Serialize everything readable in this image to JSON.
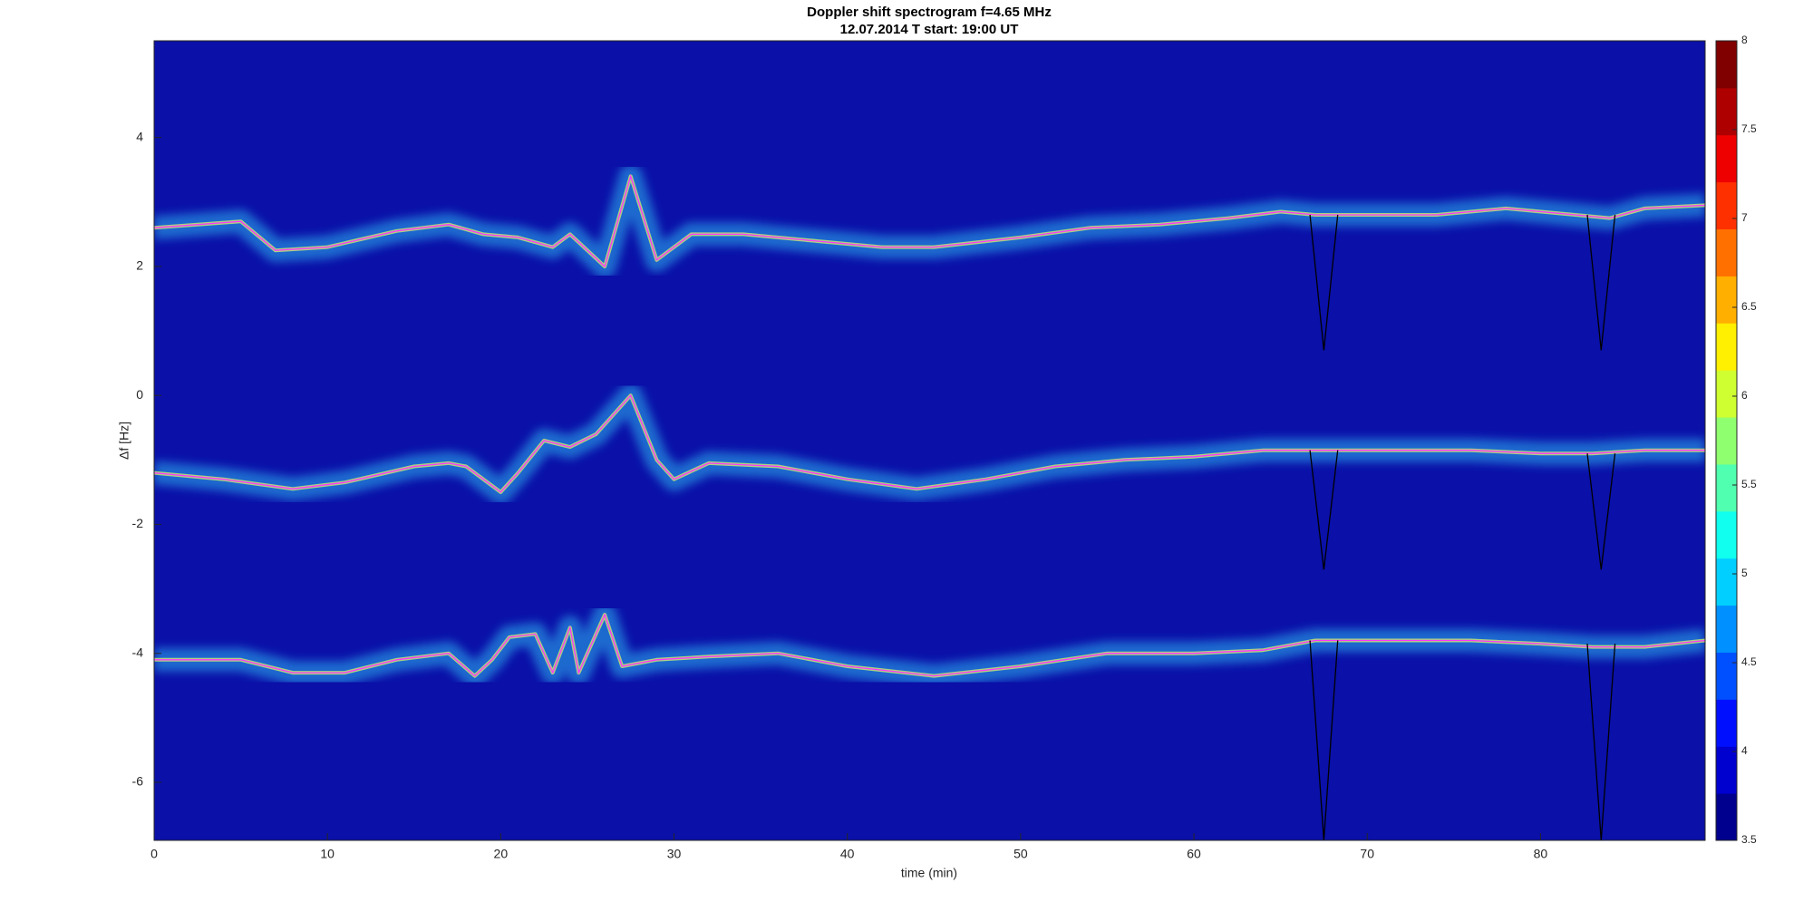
{
  "chart_data": {
    "type": "spectrogram",
    "title": "Doppler shift spectrogram f=4.65 MHz",
    "subtitle": "12.07.2014   T start: 19:00 UT",
    "x_label": "time (min)",
    "y_label": "Δf [Hz]",
    "xlim": [
      0,
      89.5
    ],
    "xticks": [
      0,
      10,
      20,
      30,
      40,
      50,
      60,
      70,
      80
    ],
    "ylim": [
      -6.9,
      5.5
    ],
    "yticks": [
      -6,
      -4,
      -2,
      0,
      2,
      4
    ],
    "background": "#0a10a8",
    "band_color": "#33d6ff",
    "series": [
      {
        "color": "#ff33ff",
        "band": true,
        "x": [
          0,
          5,
          7,
          10,
          14,
          17,
          19,
          21,
          23,
          24,
          26,
          27.5,
          29,
          31,
          34,
          38,
          42,
          45,
          50,
          54,
          58,
          62,
          65,
          67,
          70,
          74,
          78,
          82,
          84,
          86,
          89.5
        ],
        "values": [
          2.6,
          2.7,
          2.25,
          2.3,
          2.55,
          2.65,
          2.5,
          2.45,
          2.3,
          2.5,
          2.0,
          3.4,
          2.1,
          2.5,
          2.5,
          2.4,
          2.3,
          2.3,
          2.45,
          2.6,
          2.65,
          2.75,
          2.85,
          2.8,
          2.8,
          2.8,
          2.9,
          2.8,
          2.75,
          2.9,
          2.95
        ]
      },
      {
        "color": "#ff33ff",
        "band": true,
        "x": [
          0,
          4,
          8,
          11,
          15,
          17,
          18,
          20,
          21,
          22.5,
          24,
          25.5,
          27.5,
          29,
          30,
          32,
          36,
          40,
          44,
          48,
          52,
          56,
          60,
          64,
          67,
          70,
          76,
          80,
          83,
          86,
          89.5
        ],
        "values": [
          -1.2,
          -1.3,
          -1.45,
          -1.35,
          -1.1,
          -1.05,
          -1.1,
          -1.5,
          -1.2,
          -0.7,
          -0.8,
          -0.6,
          0,
          -1.0,
          -1.3,
          -1.05,
          -1.1,
          -1.3,
          -1.45,
          -1.3,
          -1.1,
          -1.0,
          -0.95,
          -0.85,
          -0.85,
          -0.85,
          -0.85,
          -0.9,
          -0.9,
          -0.85,
          -0.85
        ]
      },
      {
        "color": "#ff33ff",
        "band": true,
        "x": [
          0,
          5,
          8,
          11,
          14,
          17,
          18.5,
          19.5,
          20.5,
          22,
          23,
          24,
          24.5,
          26,
          27,
          29,
          32,
          36,
          40,
          45,
          50,
          55,
          60,
          64,
          67,
          70,
          76,
          80,
          83,
          86,
          89.5
        ],
        "values": [
          -4.1,
          -4.1,
          -4.3,
          -4.3,
          -4.1,
          -4.0,
          -4.35,
          -4.1,
          -3.75,
          -3.7,
          -4.3,
          -3.6,
          -4.3,
          -3.4,
          -4.2,
          -4.1,
          -4.05,
          -4.0,
          -4.2,
          -4.35,
          -4.2,
          -4.0,
          -4.0,
          -3.95,
          -3.8,
          -3.8,
          -3.8,
          -3.85,
          -3.9,
          -3.9,
          -3.8
        ]
      },
      {
        "color": "#000000",
        "x": [
          66.7,
          67.5,
          68.3,
          76,
          82.7,
          83.5,
          84.3
        ],
        "values": [
          2.8,
          0.7,
          2.8,
          null,
          2.8,
          0.7,
          2.8
        ]
      },
      {
        "color": "#000000",
        "x": [
          66.7,
          67.5,
          68.3,
          76,
          82.7,
          83.5,
          84.3
        ],
        "values": [
          -0.85,
          -2.7,
          -0.85,
          null,
          -0.9,
          -2.7,
          -0.9
        ]
      },
      {
        "color": "#000000",
        "x": [
          66.7,
          67.5,
          68.3,
          76,
          82.7,
          83.5,
          84.3
        ],
        "values": [
          -3.8,
          -6.9,
          -3.8,
          null,
          -3.85,
          -6.9,
          -3.85
        ]
      }
    ],
    "colorbar": {
      "lim": [
        3.5,
        8
      ],
      "ticks": [
        3.5,
        4,
        4.5,
        5,
        5.5,
        6,
        6.5,
        7,
        7.5,
        8
      ],
      "colors": [
        "#00008f",
        "#0000cf",
        "#0010ff",
        "#0050ff",
        "#0090ff",
        "#00cfff",
        "#10ffef",
        "#50ffaf",
        "#90ff6f",
        "#cfff30",
        "#ffef00",
        "#ffaf00",
        "#ff7000",
        "#ff3000",
        "#ef0000",
        "#af0000",
        "#800000"
      ]
    }
  }
}
